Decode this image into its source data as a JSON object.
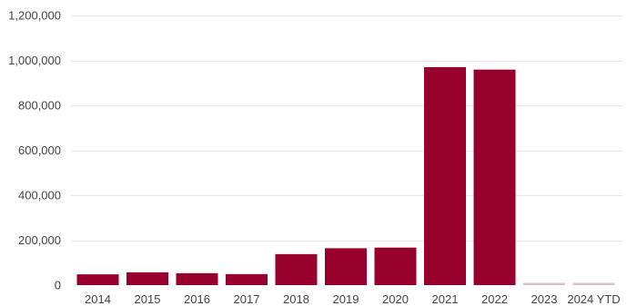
{
  "chart_data": {
    "type": "bar",
    "title": "",
    "xlabel": "",
    "ylabel": "",
    "categories": [
      "2014",
      "2015",
      "2016",
      "2017",
      "2018",
      "2019",
      "2020",
      "2021",
      "2022",
      "2023",
      "2024 YTD"
    ],
    "values": [
      48000,
      57000,
      53000,
      49000,
      138000,
      164000,
      167000,
      970000,
      959000,
      8000,
      3000
    ],
    "ylim": [
      0,
      1200000
    ],
    "yticks": [
      0,
      200000,
      400000,
      600000,
      800000,
      1000000,
      1200000
    ],
    "ytick_labels": [
      "0",
      "200,000",
      "400,000",
      "600,000",
      "800,000",
      "1,000,000",
      "1,200,000"
    ],
    "grid": true,
    "legend": "none",
    "colors": {
      "bar": "#98002e",
      "bar_faint": "#d9c3c9",
      "grid": "#e6e6e6",
      "text": "#444444"
    }
  }
}
